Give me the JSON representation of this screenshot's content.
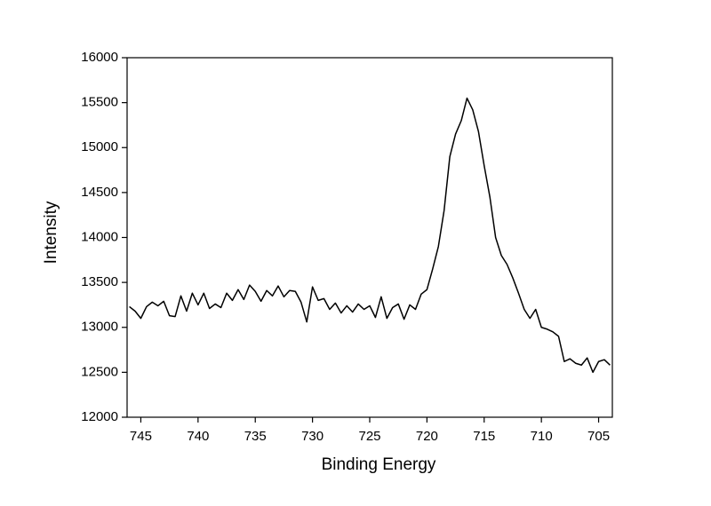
{
  "chart_data": {
    "type": "line",
    "x_label": "Binding Energy",
    "y_label": "Intensity",
    "x": [
      746,
      745.5,
      745,
      744.5,
      744,
      743.5,
      743,
      742.5,
      742,
      741.5,
      741,
      740.5,
      740,
      739.5,
      739,
      738.5,
      738,
      737.5,
      737,
      736.5,
      736,
      735.5,
      735,
      734.5,
      734,
      733.5,
      733,
      732.5,
      732,
      731.5,
      731,
      730.5,
      730,
      729.5,
      729,
      728.5,
      728,
      727.5,
      727,
      726.5,
      726,
      725.5,
      725,
      724.5,
      724,
      723.5,
      723,
      722.5,
      722,
      721.5,
      721,
      720.5,
      720,
      719.5,
      719,
      718.5,
      718,
      717.5,
      717,
      716.5,
      716,
      715.5,
      715,
      714.5,
      714,
      713.5,
      713,
      712.5,
      712,
      711.5,
      711,
      710.5,
      710,
      709.5,
      709,
      708.5,
      708,
      707.5,
      707,
      706.5,
      706,
      705.5,
      705,
      704.5,
      704
    ],
    "series": [
      {
        "color": "#000000",
        "values": [
          13230,
          13180,
          13100,
          13230,
          13280,
          13240,
          13290,
          13130,
          13120,
          13350,
          13180,
          13380,
          13250,
          13380,
          13210,
          13260,
          13220,
          13380,
          13300,
          13420,
          13310,
          13470,
          13400,
          13290,
          13410,
          13350,
          13460,
          13340,
          13410,
          13400,
          13280,
          13060,
          13450,
          13300,
          13320,
          13200,
          13270,
          13160,
          13240,
          13170,
          13260,
          13200,
          13240,
          13110,
          13340,
          13100,
          13220,
          13260,
          13090,
          13250,
          13200,
          13370,
          13420,
          13650,
          13900,
          14300,
          14900,
          15150,
          15300,
          15550,
          15420,
          15180,
          14800,
          14450,
          14000,
          13800,
          13700,
          13550,
          13380,
          13200,
          13100,
          13200,
          13000,
          12980,
          12950,
          12900,
          12620,
          12650,
          12600,
          12580,
          12660,
          12500,
          12620,
          12640,
          12580
        ]
      }
    ],
    "xlim": [
      746.2,
      703.8
    ],
    "ylim": [
      12000,
      16000
    ],
    "xticks": [
      745,
      740,
      735,
      730,
      725,
      720,
      715,
      710,
      705
    ],
    "yticks": [
      12000,
      12500,
      13000,
      13500,
      14000,
      14500,
      15000,
      15500,
      16000
    ]
  }
}
